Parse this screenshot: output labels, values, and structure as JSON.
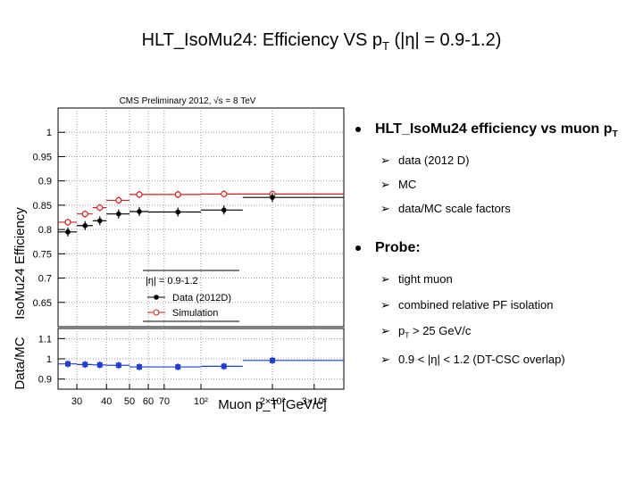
{
  "slide": {
    "title_pre": "HLT_IsoMu24: Efficiency VS p",
    "title_sub": "T",
    "title_post": " (|η| = 0.9-1.2)"
  },
  "bullets": {
    "b1_pre": "HLT_IsoMu24 efficiency vs muon p",
    "b1_sub": "T",
    "b1_subs": [
      "data  (2012 D)",
      "MC",
      "data/MC scale factors"
    ],
    "b2": "Probe:",
    "b2_s1": "tight muon",
    "b2_s2": "combined relative PF isolation",
    "b2_s3_pre": "p",
    "b2_s3_sub": "T",
    "b2_s3_post": " > 25 GeV/c",
    "b2_s4": "0.9 < |η| < 1.2  (DT-CSC overlap)"
  },
  "chart_data": {
    "type": "scatter",
    "title": "CMS Preliminary 2012,  √s = 8 TeV",
    "xlabel": "Muon p_T [GeV/c]",
    "xscale": "log",
    "xlim": [
      25,
      400
    ],
    "ylabel_top": "IsoMu24 Efficiency",
    "ylabel_bottom": "Data/MC",
    "ylim_top": [
      0.6,
      1.05
    ],
    "ylim_bottom": [
      0.85,
      1.15
    ],
    "xticks": [
      30,
      40,
      50,
      60,
      70,
      100,
      200,
      300
    ],
    "xtick_labels": [
      "30",
      "40",
      "50",
      "60",
      "70",
      "10²",
      "2×10²",
      "3×10²"
    ],
    "yticks_top": [
      "1",
      "0.95",
      "0.9",
      "0.85",
      "0.8",
      "0.75",
      "0.7",
      "0.65"
    ],
    "yticks_bottom": [
      "1.1",
      "1",
      "0.9"
    ],
    "legend": {
      "header": "|η| = 0.9-1.2",
      "entries": [
        "Data (2012D)",
        "Simulation"
      ],
      "placement": "bottom-left"
    },
    "bins": [
      {
        "x": 27.5,
        "xlo": 25,
        "xhi": 30,
        "data": 0.795,
        "mc": 0.815,
        "ratio": 0.975
      },
      {
        "x": 32.5,
        "xlo": 30,
        "xhi": 35,
        "data": 0.808,
        "mc": 0.832,
        "ratio": 0.972
      },
      {
        "x": 37.5,
        "xlo": 35,
        "xhi": 40,
        "data": 0.818,
        "mc": 0.845,
        "ratio": 0.97
      },
      {
        "x": 45,
        "xlo": 40,
        "xhi": 50,
        "data": 0.832,
        "mc": 0.86,
        "ratio": 0.968
      },
      {
        "x": 55,
        "xlo": 50,
        "xhi": 60,
        "data": 0.837,
        "mc": 0.872,
        "ratio": 0.96
      },
      {
        "x": 80,
        "xlo": 60,
        "xhi": 100,
        "data": 0.836,
        "mc": 0.872,
        "ratio": 0.96
      },
      {
        "x": 125,
        "xlo": 100,
        "xhi": 150,
        "data": 0.84,
        "mc": 0.873,
        "ratio": 0.963
      },
      {
        "x": 200,
        "xlo": 150,
        "xhi": 400,
        "data": 0.866,
        "mc": 0.873,
        "ratio": 0.992
      }
    ],
    "colors": {
      "data": "#000000",
      "mc": "#cc2222",
      "ratio": "#1f3fcf"
    }
  }
}
